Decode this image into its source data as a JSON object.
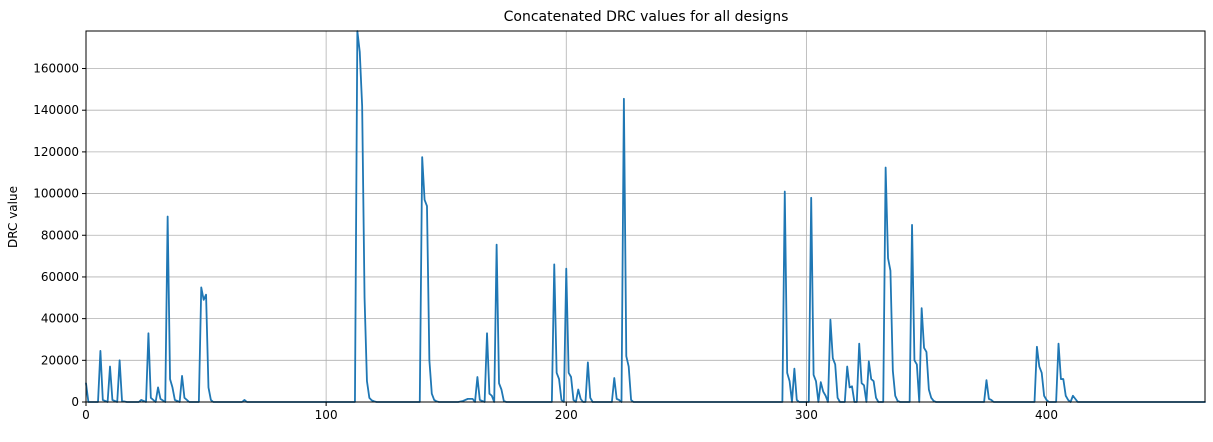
{
  "chart_data": {
    "type": "line",
    "title": "Concatenated DRC values for all designs",
    "xlabel": "",
    "ylabel": "DRC value",
    "xlim": [
      0,
      466
    ],
    "ylim": [
      0,
      178000
    ],
    "x_ticks": [
      0,
      100,
      200,
      300,
      400
    ],
    "y_ticks": [
      0,
      20000,
      40000,
      60000,
      80000,
      100000,
      120000,
      140000,
      160000
    ],
    "grid": true,
    "series_color": "#1f77b4",
    "series": [
      {
        "points": [
          [
            0,
            9000
          ],
          [
            1,
            0
          ],
          [
            5,
            0
          ],
          [
            6,
            24500
          ],
          [
            7,
            1000
          ],
          [
            9,
            0
          ],
          [
            10,
            17000
          ],
          [
            11,
            1000
          ],
          [
            13,
            0
          ],
          [
            14,
            20000
          ],
          [
            15,
            500
          ],
          [
            17,
            0
          ],
          [
            22,
            0
          ],
          [
            23,
            1000
          ],
          [
            25,
            0
          ],
          [
            26,
            33000
          ],
          [
            27,
            2000
          ],
          [
            29,
            0
          ],
          [
            30,
            7000
          ],
          [
            31,
            1500
          ],
          [
            33,
            0
          ],
          [
            34,
            89000
          ],
          [
            35,
            11000
          ],
          [
            36,
            7000
          ],
          [
            37,
            1000
          ],
          [
            39,
            0
          ],
          [
            40,
            12500
          ],
          [
            41,
            2000
          ],
          [
            43,
            0
          ],
          [
            47,
            0
          ],
          [
            48,
            55000
          ],
          [
            49,
            49000
          ],
          [
            50,
            51500
          ],
          [
            51,
            7000
          ],
          [
            52,
            1000
          ],
          [
            53,
            0
          ],
          [
            65,
            0
          ],
          [
            66,
            1000
          ],
          [
            67,
            0
          ],
          [
            112,
            0
          ],
          [
            113,
            178000
          ],
          [
            114,
            168000
          ],
          [
            115,
            142000
          ],
          [
            116,
            50000
          ],
          [
            117,
            10000
          ],
          [
            118,
            2000
          ],
          [
            119,
            800
          ],
          [
            120,
            300
          ],
          [
            121,
            0
          ],
          [
            139,
            0
          ],
          [
            140,
            117500
          ],
          [
            141,
            97000
          ],
          [
            142,
            94000
          ],
          [
            143,
            20000
          ],
          [
            144,
            4000
          ],
          [
            145,
            1000
          ],
          [
            146,
            300
          ],
          [
            147,
            0
          ],
          [
            155,
            0
          ],
          [
            157,
            500
          ],
          [
            159,
            1500
          ],
          [
            161,
            1500
          ],
          [
            162,
            0
          ],
          [
            163,
            12000
          ],
          [
            164,
            1000
          ],
          [
            166,
            0
          ],
          [
            167,
            33000
          ],
          [
            168,
            4000
          ],
          [
            169,
            3000
          ],
          [
            170,
            0
          ],
          [
            171,
            75500
          ],
          [
            172,
            9000
          ],
          [
            173,
            6000
          ],
          [
            174,
            500
          ],
          [
            175,
            0
          ],
          [
            194,
            0
          ],
          [
            195,
            66000
          ],
          [
            196,
            14000
          ],
          [
            197,
            11000
          ],
          [
            198,
            1000
          ],
          [
            199,
            0
          ],
          [
            200,
            64000
          ],
          [
            201,
            14000
          ],
          [
            202,
            12000
          ],
          [
            203,
            1000
          ],
          [
            204,
            0
          ],
          [
            205,
            6000
          ],
          [
            206,
            1500
          ],
          [
            207,
            0
          ],
          [
            208,
            0
          ],
          [
            209,
            19000
          ],
          [
            210,
            2000
          ],
          [
            211,
            0
          ],
          [
            219,
            0
          ],
          [
            220,
            11500
          ],
          [
            221,
            1500
          ],
          [
            222,
            1000
          ],
          [
            223,
            0
          ],
          [
            224,
            145500
          ],
          [
            225,
            22000
          ],
          [
            226,
            17000
          ],
          [
            227,
            1000
          ],
          [
            228,
            0
          ],
          [
            290,
            0
          ],
          [
            291,
            101000
          ],
          [
            292,
            14000
          ],
          [
            293,
            10000
          ],
          [
            294,
            0
          ],
          [
            295,
            16000
          ],
          [
            296,
            1000
          ],
          [
            297,
            0
          ],
          [
            301,
            0
          ],
          [
            302,
            98000
          ],
          [
            303,
            13000
          ],
          [
            304,
            10000
          ],
          [
            305,
            0
          ],
          [
            306,
            9500
          ],
          [
            307,
            5000
          ],
          [
            308,
            3000
          ],
          [
            309,
            0
          ],
          [
            310,
            39500
          ],
          [
            311,
            21000
          ],
          [
            312,
            18000
          ],
          [
            313,
            2000
          ],
          [
            314,
            0
          ],
          [
            316,
            0
          ],
          [
            317,
            17000
          ],
          [
            318,
            7000
          ],
          [
            319,
            7500
          ],
          [
            320,
            0
          ],
          [
            321,
            0
          ],
          [
            322,
            28000
          ],
          [
            323,
            9000
          ],
          [
            324,
            8000
          ],
          [
            325,
            0
          ],
          [
            326,
            19500
          ],
          [
            327,
            11000
          ],
          [
            328,
            10000
          ],
          [
            329,
            2000
          ],
          [
            330,
            0
          ],
          [
            332,
            0
          ],
          [
            333,
            112500
          ],
          [
            334,
            69000
          ],
          [
            335,
            63000
          ],
          [
            336,
            15000
          ],
          [
            337,
            3000
          ],
          [
            338,
            500
          ],
          [
            339,
            0
          ],
          [
            343,
            0
          ],
          [
            344,
            85000
          ],
          [
            345,
            20000
          ],
          [
            346,
            18000
          ],
          [
            347,
            0
          ],
          [
            348,
            45000
          ],
          [
            349,
            26000
          ],
          [
            350,
            24000
          ],
          [
            351,
            6000
          ],
          [
            352,
            2000
          ],
          [
            353,
            500
          ],
          [
            354,
            0
          ],
          [
            374,
            0
          ],
          [
            375,
            10500
          ],
          [
            376,
            1500
          ],
          [
            377,
            1000
          ],
          [
            378,
            0
          ],
          [
            395,
            0
          ],
          [
            396,
            26500
          ],
          [
            397,
            17000
          ],
          [
            398,
            14000
          ],
          [
            399,
            3000
          ],
          [
            400,
            1000
          ],
          [
            401,
            0
          ],
          [
            404,
            0
          ],
          [
            405,
            28000
          ],
          [
            406,
            11000
          ],
          [
            407,
            11000
          ],
          [
            408,
            3000
          ],
          [
            409,
            1000
          ],
          [
            410,
            0
          ],
          [
            411,
            3000
          ],
          [
            412,
            1500
          ],
          [
            413,
            0
          ],
          [
            466,
            0
          ]
        ]
      }
    ]
  }
}
